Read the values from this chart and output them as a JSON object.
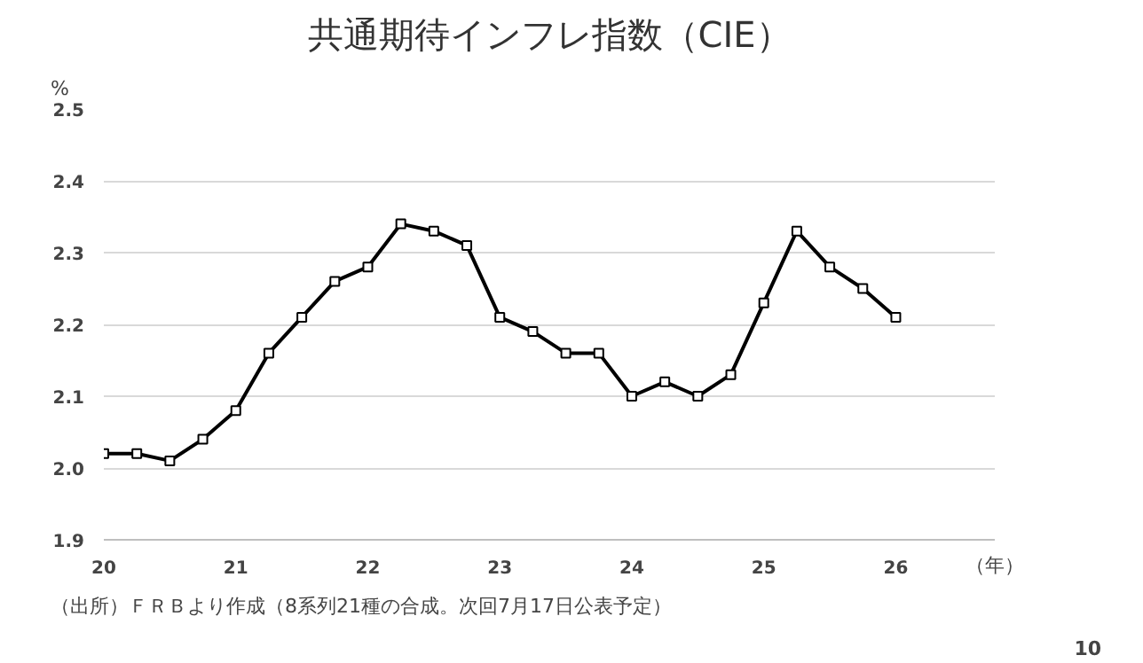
{
  "chart_data": {
    "type": "line",
    "title": "共通期待インフレ指数（CIE）",
    "ylabel": "%",
    "x": [
      20,
      20.25,
      20.5,
      20.75,
      21,
      21.25,
      21.5,
      21.75,
      22,
      22.25,
      22.5,
      22.75,
      23,
      23.25,
      23.5,
      23.75,
      24,
      24.25,
      24.5,
      24.75,
      25,
      25.25,
      25.5,
      25.75,
      26
    ],
    "series": [
      {
        "color": "#000000",
        "values": [
          2.02,
          2.02,
          2.01,
          2.04,
          2.08,
          2.16,
          2.21,
          2.26,
          2.28,
          2.34,
          2.33,
          2.31,
          2.21,
          2.19,
          2.16,
          2.16,
          2.1,
          2.12,
          2.1,
          2.13,
          2.23,
          2.33,
          2.28,
          2.25,
          2.21
        ]
      }
    ],
    "xlim": [
      20,
      26.75
    ],
    "xticks": [
      20,
      21,
      22,
      23,
      24,
      25,
      26
    ],
    "ylim": [
      1.9,
      2.5
    ],
    "yticks": [
      {
        "value": 1.9,
        "label": "1.9"
      },
      {
        "value": 2.0,
        "label": "2.0"
      },
      {
        "value": 2.1,
        "label": "2.1"
      },
      {
        "value": 2.2,
        "label": "2.2"
      },
      {
        "value": 2.3,
        "label": "2.3"
      },
      {
        "value": 2.4,
        "label": "2.4"
      },
      {
        "value": 2.5,
        "label": "2.5"
      }
    ],
    "grid": "y",
    "marker": "square",
    "line_style": "solid",
    "annotations": [
      "（年）",
      "（出所）ＦＲＢより作成（8系列21種の合成。次回7月17日公表予定）",
      "10"
    ]
  }
}
